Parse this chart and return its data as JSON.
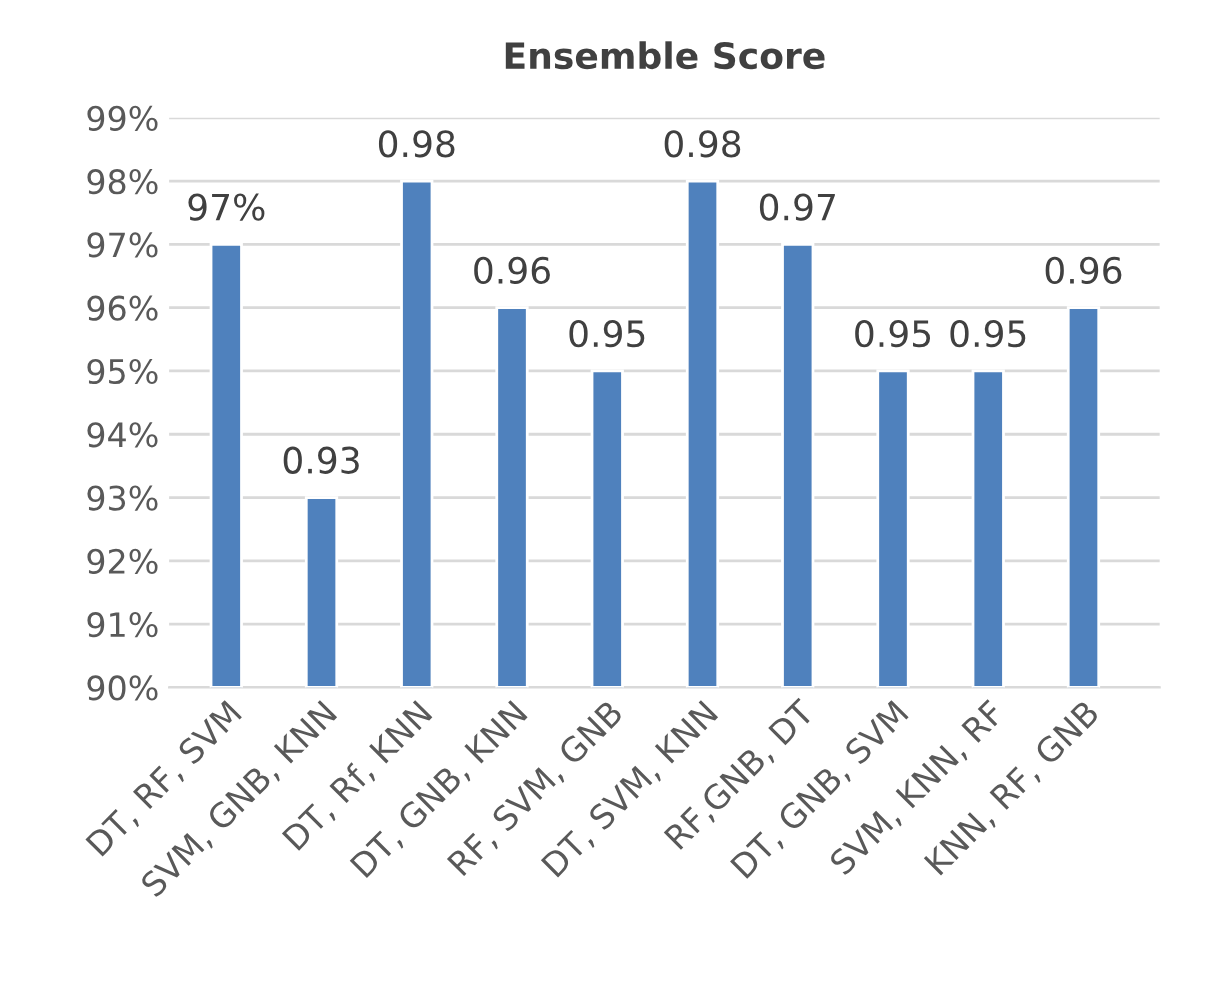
{
  "chart_data": {
    "type": "bar",
    "title": "Ensemble Score",
    "categories": [
      "DT, RF, SVM",
      "SVM, GNB, KNN",
      "DT, Rf, KNN",
      "DT, GNB, KNN",
      "RF, SVM, GNB",
      "DT, SVM, KNN",
      "RF,GNB, DT",
      "DT, GNB, SVM",
      "SVM, KNN, RF",
      "KNN, RF, GNB"
    ],
    "values": [
      0.97,
      0.93,
      0.98,
      0.96,
      0.95,
      0.98,
      0.97,
      0.95,
      0.95,
      0.96
    ],
    "value_labels": [
      "97%",
      "0.93",
      "0.98",
      "0.96",
      "0.95",
      "0.98",
      "0.97",
      "0.95",
      "0.95",
      "0.96"
    ],
    "color": "#4f81bd",
    "ylim": [
      0.9,
      0.99
    ],
    "yticks": [
      {
        "value": 0.9,
        "label": "90%"
      },
      {
        "value": 0.91,
        "label": "91%"
      },
      {
        "value": 0.92,
        "label": "92%"
      },
      {
        "value": 0.93,
        "label": "93%"
      },
      {
        "value": 0.94,
        "label": "94%"
      },
      {
        "value": 0.95,
        "label": "95%"
      },
      {
        "value": 0.96,
        "label": "96%"
      },
      {
        "value": 0.97,
        "label": "97%"
      },
      {
        "value": 0.98,
        "label": "98%"
      },
      {
        "value": 0.99,
        "label": "99%"
      }
    ],
    "grid": "y"
  }
}
